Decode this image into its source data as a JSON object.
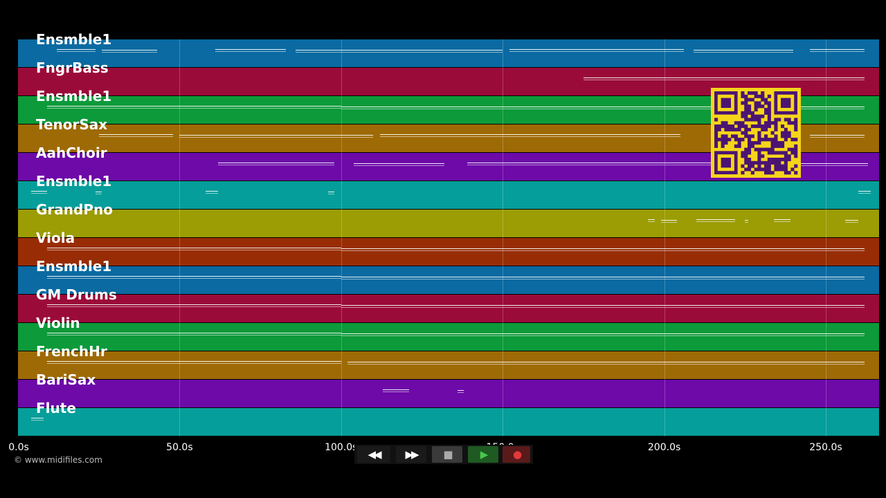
{
  "tracks": [
    {
      "label": "Ensmble1",
      "color": "#0a6aa1",
      "notes": [
        [
          12,
          24
        ],
        [
          26,
          43
        ],
        [
          61,
          83
        ],
        [
          86,
          150
        ],
        [
          152,
          206
        ],
        [
          209,
          240
        ],
        [
          245,
          262
        ]
      ]
    },
    {
      "label": "FngrBass",
      "color": "#9b0b3a",
      "notes": [
        [
          175,
          262
        ]
      ]
    },
    {
      "label": "Ensmble1",
      "color": "#0c9a3a",
      "notes": [
        [
          9,
          100
        ],
        [
          100,
          262
        ]
      ]
    },
    {
      "label": "TenorSax",
      "color": "#9e6a05",
      "notes": [
        [
          25,
          48
        ],
        [
          50,
          110
        ],
        [
          112,
          205
        ],
        [
          245,
          262
        ]
      ]
    },
    {
      "label": "AahChoir",
      "color": "#6d0aa8",
      "notes": [
        [
          62,
          98
        ],
        [
          104,
          132
        ],
        [
          139,
          216
        ],
        [
          241,
          263
        ]
      ]
    },
    {
      "label": "Ensmble1",
      "color": "#059e9a",
      "notes": [
        [
          4,
          9
        ],
        [
          24,
          26
        ],
        [
          58,
          62
        ],
        [
          96,
          98
        ],
        [
          260,
          264
        ]
      ]
    },
    {
      "label": "GrandPno",
      "color": "#9c9c05",
      "notes": [
        [
          195,
          197
        ],
        [
          199,
          204
        ],
        [
          210,
          222
        ],
        [
          225,
          226
        ],
        [
          234,
          239
        ],
        [
          256,
          260
        ]
      ]
    },
    {
      "label": "Viola",
      "color": "#982d05",
      "notes": [
        [
          9,
          100
        ],
        [
          100,
          262
        ]
      ]
    },
    {
      "label": "Ensmble1",
      "color": "#0a6aa1",
      "notes": [
        [
          9,
          100
        ],
        [
          100,
          262
        ]
      ]
    },
    {
      "label": "GM Drums",
      "color": "#9b0b3a",
      "notes": [
        [
          9,
          100
        ],
        [
          100,
          262
        ]
      ]
    },
    {
      "label": "Violin",
      "color": "#0c9a3a",
      "notes": [
        [
          9,
          100
        ],
        [
          100,
          262
        ]
      ]
    },
    {
      "label": "FrenchHr",
      "color": "#9e6a05",
      "notes": [
        [
          9,
          100
        ],
        [
          102,
          262
        ]
      ]
    },
    {
      "label": "BariSax",
      "color": "#6d0aa8",
      "notes": [
        [
          113,
          121
        ],
        [
          136,
          138
        ]
      ]
    },
    {
      "label": "Flute",
      "color": "#059e9a",
      "notes": [
        [
          4,
          8
        ]
      ]
    }
  ],
  "axis": {
    "max_seconds": 266.5,
    "ticks": [
      "0.0s",
      "50.0s",
      "100.0s",
      "150.0s",
      "200.0s",
      "250.0s"
    ],
    "tick_values": [
      0,
      50,
      100,
      150,
      200,
      250
    ]
  },
  "copyright": "© www.midifiles.com",
  "transport": {
    "buttons": [
      {
        "name": "rewind-button",
        "icon": "rewind-icon",
        "glyph": "◀◀",
        "bg": "#1a1a1a",
        "fg": "#ffffff"
      },
      {
        "name": "fast-forward-button",
        "icon": "fast-forward-icon",
        "glyph": "▶▶",
        "bg": "#1a1a1a",
        "fg": "#ffffff"
      },
      {
        "name": "stop-button",
        "icon": "stop-icon",
        "glyph": "■",
        "bg": "#3a3a3a",
        "fg": "#aaaaaa"
      },
      {
        "name": "play-button",
        "icon": "play-icon",
        "glyph": "▶",
        "bg": "#1e5a22",
        "fg": "#46c84a"
      },
      {
        "name": "record-button",
        "icon": "record-icon",
        "glyph": "●",
        "bg": "#5a1a1a",
        "fg": "#e23a3a"
      }
    ]
  },
  "qr": {
    "color": "#4b1473",
    "bg": "#f5d51a"
  }
}
